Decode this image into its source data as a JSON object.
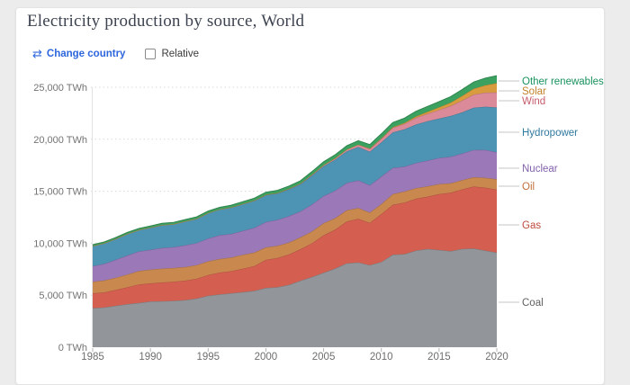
{
  "page": {
    "background": "#edecec"
  },
  "header": {
    "title": "Electricity production by source, World",
    "change_country_label": "Change country",
    "relative_label": "Relative",
    "accent_color": "#2e66dd"
  },
  "chart_data": {
    "type": "area",
    "stacked": true,
    "unit": "TWh",
    "xlabel": "",
    "ylabel": "",
    "xlim": [
      1985,
      2020
    ],
    "ylim": [
      0,
      26500
    ],
    "grid": "dotted-horizontal",
    "legend_position": "right",
    "years": [
      1985,
      1986,
      1987,
      1988,
      1989,
      1990,
      1991,
      1992,
      1993,
      1994,
      1995,
      1996,
      1997,
      1998,
      1999,
      2000,
      2001,
      2002,
      2003,
      2004,
      2005,
      2006,
      2007,
      2008,
      2009,
      2010,
      2011,
      2012,
      2013,
      2014,
      2015,
      2016,
      2017,
      2018,
      2019,
      2020
    ],
    "series": [
      {
        "name": "Coal",
        "color": "#929599",
        "label_color": "#5f5f5f",
        "values": [
          3750,
          3820,
          3990,
          4140,
          4260,
          4400,
          4420,
          4460,
          4530,
          4680,
          4950,
          5080,
          5190,
          5300,
          5430,
          5700,
          5780,
          6000,
          6400,
          6760,
          7170,
          7570,
          8070,
          8160,
          7900,
          8200,
          8900,
          8950,
          9300,
          9450,
          9350,
          9250,
          9450,
          9500,
          9300,
          9100
        ]
      },
      {
        "name": "Gas",
        "color": "#d45f51",
        "label_color": "#bf4a3d",
        "values": [
          1440,
          1450,
          1530,
          1620,
          1780,
          1740,
          1810,
          1830,
          1870,
          1900,
          2000,
          2100,
          2120,
          2250,
          2380,
          2700,
          2800,
          2920,
          3030,
          3230,
          3600,
          3740,
          4020,
          4180,
          4060,
          4600,
          4800,
          4950,
          4980,
          5030,
          5370,
          5610,
          5730,
          5950,
          6050,
          6050
        ]
      },
      {
        "name": "Oil",
        "color": "#c8884e",
        "label_color": "#c2703c",
        "values": [
          1110,
          1150,
          1170,
          1230,
          1290,
          1320,
          1330,
          1330,
          1310,
          1320,
          1310,
          1310,
          1320,
          1340,
          1290,
          1200,
          1170,
          1150,
          1140,
          1150,
          1160,
          1100,
          1080,
          1050,
          990,
          960,
          1030,
          1070,
          1020,
          1000,
          970,
          910,
          880,
          900,
          950,
          1000
        ]
      },
      {
        "name": "Nuclear",
        "color": "#9b79b9",
        "label_color": "#8261ab",
        "values": [
          1490,
          1590,
          1720,
          1830,
          1880,
          1900,
          1990,
          2010,
          2080,
          2120,
          2200,
          2280,
          2260,
          2300,
          2380,
          2430,
          2500,
          2530,
          2500,
          2600,
          2610,
          2640,
          2630,
          2660,
          2630,
          2650,
          2520,
          2400,
          2420,
          2470,
          2510,
          2540,
          2570,
          2620,
          2680,
          2600
        ]
      },
      {
        "name": "Hydropower",
        "color": "#4d93b4",
        "label_color": "#30799f",
        "values": [
          1950,
          1990,
          2010,
          2080,
          2070,
          2140,
          2200,
          2210,
          2310,
          2330,
          2440,
          2480,
          2550,
          2580,
          2610,
          2600,
          2550,
          2590,
          2610,
          2780,
          2870,
          2990,
          3040,
          3210,
          3230,
          3300,
          3420,
          3580,
          3700,
          3790,
          3790,
          3930,
          3960,
          4060,
          4150,
          4300
        ]
      },
      {
        "name": "Wind",
        "color": "#da8a98",
        "label_color": "#c55d6c",
        "values": [
          0,
          0,
          0,
          1,
          2,
          4,
          4,
          5,
          6,
          7,
          8,
          9,
          12,
          16,
          21,
          31,
          38,
          52,
          63,
          85,
          104,
          133,
          171,
          221,
          276,
          346,
          437,
          526,
          646,
          712,
          831,
          959,
          1134,
          1270,
          1350,
          1450
        ]
      },
      {
        "name": "Solar",
        "color": "#d89b3d",
        "label_color": "#c2812a",
        "values": [
          0,
          0,
          0,
          0,
          0,
          0,
          1,
          1,
          1,
          1,
          1,
          1,
          1,
          1,
          1,
          1,
          1,
          2,
          2,
          3,
          4,
          5,
          7,
          12,
          20,
          32,
          63,
          97,
          132,
          190,
          256,
          328,
          445,
          560,
          720,
          900
        ]
      },
      {
        "name": "Other renewables",
        "color": "#3ba160",
        "label_color": "#18925d",
        "values": [
          120,
          125,
          130,
          135,
          140,
          155,
          160,
          165,
          170,
          175,
          190,
          195,
          205,
          210,
          225,
          245,
          250,
          260,
          270,
          290,
          320,
          335,
          350,
          370,
          385,
          430,
          440,
          460,
          490,
          515,
          545,
          570,
          605,
          640,
          680,
          720
        ]
      }
    ],
    "y_ticks": [
      {
        "value": 0,
        "label": "0 TWh"
      },
      {
        "value": 5000,
        "label": "5,000 TWh"
      },
      {
        "value": 10000,
        "label": "10,000 TWh"
      },
      {
        "value": 15000,
        "label": "15,000 TWh"
      },
      {
        "value": 20000,
        "label": "20,000 TWh"
      },
      {
        "value": 25000,
        "label": "25,000 TWh"
      }
    ],
    "x_ticks": [
      {
        "value": 1985,
        "label": "1985"
      },
      {
        "value": 1990,
        "label": "1990"
      },
      {
        "value": 1995,
        "label": "1995"
      },
      {
        "value": 2000,
        "label": "2000"
      },
      {
        "value": 2005,
        "label": "2005"
      },
      {
        "value": 2010,
        "label": "2010"
      },
      {
        "value": 2015,
        "label": "2015"
      },
      {
        "value": 2020,
        "label": "2020"
      }
    ]
  }
}
